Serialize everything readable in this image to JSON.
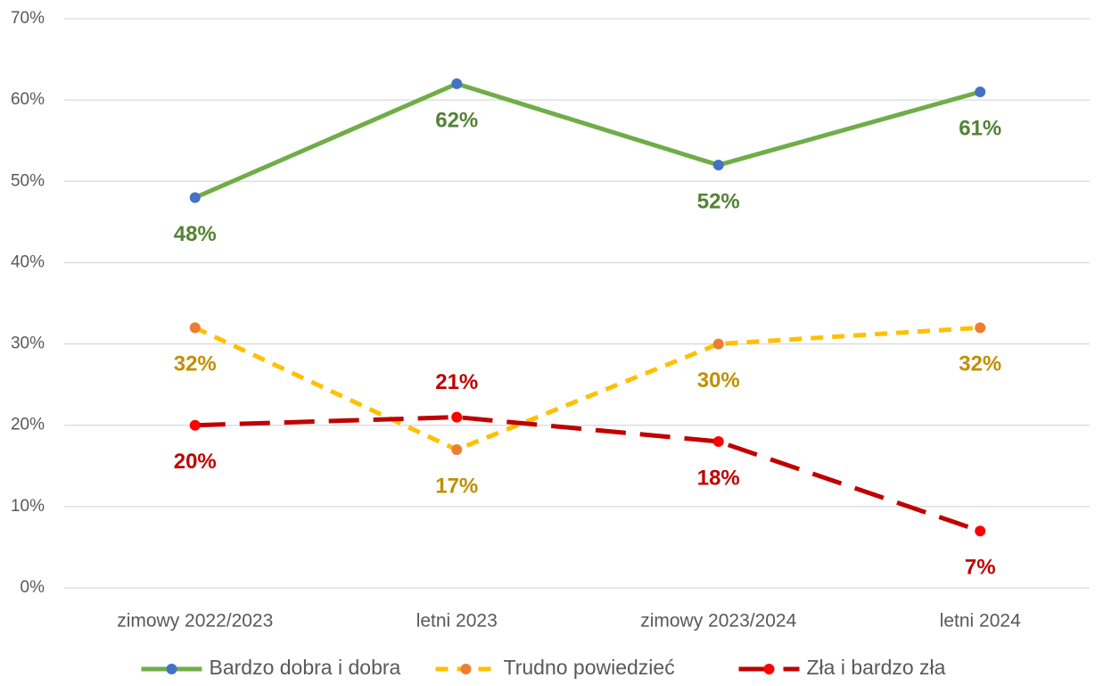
{
  "chart_data": {
    "type": "line",
    "categories": [
      "zimowy 2022/2023",
      "letni 2023",
      "zimowy 2023/2024",
      "letni 2024"
    ],
    "series": [
      {
        "name": "Bardzo dobra i dobra",
        "color": "#70ad47",
        "marker_color": "#4472c4",
        "label_color": "#548235",
        "line_style": "solid",
        "values": [
          48,
          62,
          52,
          61
        ],
        "value_labels": [
          "48%",
          "62%",
          "52%",
          "61%"
        ]
      },
      {
        "name": "Trudno powiedzieć",
        "color": "#ffc000",
        "marker_color": "#ed7d31",
        "label_color": "#bf9000",
        "line_style": "dashed",
        "values": [
          32,
          17,
          30,
          32
        ],
        "value_labels": [
          "32%",
          "17%",
          "30%",
          "32%"
        ]
      },
      {
        "name": "Zła i bardzo zła",
        "color": "#c00000",
        "marker_color": "#ff0000",
        "label_color": "#c00000",
        "line_style": "long-dashed",
        "values": [
          20,
          21,
          18,
          7
        ],
        "value_labels": [
          "20%",
          "21%",
          "18%",
          "7%"
        ]
      }
    ],
    "ylim": [
      0,
      70
    ],
    "yticks": [
      {
        "value": 0,
        "label": "0%"
      },
      {
        "value": 10,
        "label": "10%"
      },
      {
        "value": 20,
        "label": "20%"
      },
      {
        "value": 30,
        "label": "30%"
      },
      {
        "value": 40,
        "label": "40%"
      },
      {
        "value": 50,
        "label": "50%"
      },
      {
        "value": 60,
        "label": "60%"
      },
      {
        "value": 70,
        "label": "70%"
      }
    ],
    "grid": true,
    "legend": "bottom"
  }
}
